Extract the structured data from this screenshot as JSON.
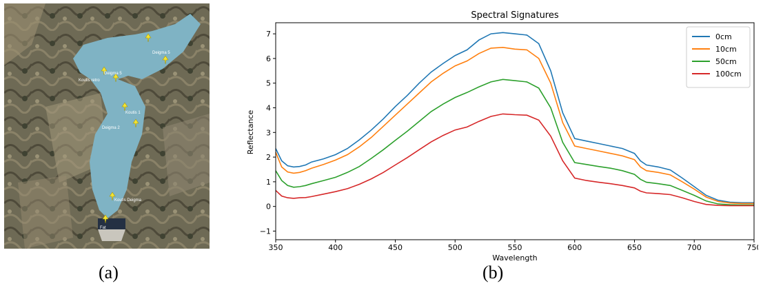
{
  "map_panel": {
    "labels": [
      {
        "name": "label-1",
        "text": ""
      },
      {
        "name": "label-2",
        "text": "Deigma 5"
      },
      {
        "name": "label-3",
        "text": "Koutis retro"
      },
      {
        "name": "label-4",
        "text": "Koutis 1"
      },
      {
        "name": "label-5",
        "text": "Deigma 2"
      },
      {
        "name": "label-6",
        "text": "Koutis Deigma"
      },
      {
        "name": "label-7",
        "text": "Fat"
      }
    ],
    "colors": {
      "water": "#7fb3c4",
      "pin": "#f5e531"
    }
  },
  "captions": {
    "a": "(a)",
    "b": "(b)"
  },
  "chart_data": {
    "type": "line",
    "title": "Spectral Signatures",
    "xlabel": "Wavelength",
    "ylabel": "Reflectance",
    "xlim": [
      350,
      750
    ],
    "ylim": [
      -1.35,
      7.45
    ],
    "xticks": [
      350,
      400,
      450,
      500,
      550,
      600,
      650,
      700,
      750
    ],
    "yticks": [
      -1,
      0,
      1,
      2,
      3,
      4,
      5,
      6,
      7
    ],
    "legend_position": "top-right",
    "grid": false,
    "x": [
      350,
      355,
      360,
      365,
      370,
      375,
      380,
      390,
      400,
      410,
      420,
      430,
      440,
      450,
      460,
      470,
      480,
      490,
      500,
      510,
      520,
      530,
      540,
      550,
      560,
      570,
      580,
      590,
      600,
      610,
      620,
      630,
      640,
      650,
      655,
      660,
      670,
      680,
      690,
      700,
      710,
      720,
      730,
      740,
      750
    ],
    "series": [
      {
        "name": "0cm",
        "color": "#1f77b4",
        "values": [
          2.35,
          1.85,
          1.65,
          1.6,
          1.62,
          1.68,
          1.8,
          1.93,
          2.1,
          2.35,
          2.7,
          3.1,
          3.55,
          4.05,
          4.5,
          5.0,
          5.45,
          5.8,
          6.12,
          6.35,
          6.75,
          7.0,
          7.05,
          7.0,
          6.95,
          6.6,
          5.5,
          3.8,
          2.75,
          2.65,
          2.55,
          2.45,
          2.35,
          2.15,
          1.85,
          1.68,
          1.6,
          1.48,
          1.15,
          0.8,
          0.45,
          0.25,
          0.17,
          0.15,
          0.15
        ]
      },
      {
        "name": "10cm",
        "color": "#ff7f0e",
        "values": [
          2.2,
          1.6,
          1.4,
          1.35,
          1.38,
          1.45,
          1.55,
          1.7,
          1.88,
          2.1,
          2.42,
          2.8,
          3.25,
          3.7,
          4.15,
          4.6,
          5.05,
          5.4,
          5.7,
          5.9,
          6.2,
          6.42,
          6.45,
          6.38,
          6.35,
          6.0,
          5.0,
          3.4,
          2.45,
          2.35,
          2.25,
          2.15,
          2.05,
          1.9,
          1.6,
          1.45,
          1.38,
          1.28,
          1.0,
          0.7,
          0.38,
          0.2,
          0.14,
          0.12,
          0.12
        ]
      },
      {
        "name": "50cm",
        "color": "#2ca02c",
        "values": [
          1.45,
          1.05,
          0.85,
          0.78,
          0.8,
          0.85,
          0.92,
          1.05,
          1.18,
          1.38,
          1.62,
          1.95,
          2.3,
          2.68,
          3.05,
          3.45,
          3.85,
          4.15,
          4.42,
          4.62,
          4.85,
          5.05,
          5.15,
          5.1,
          5.05,
          4.8,
          4.0,
          2.6,
          1.78,
          1.7,
          1.62,
          1.55,
          1.45,
          1.3,
          1.1,
          0.98,
          0.92,
          0.85,
          0.65,
          0.45,
          0.22,
          0.1,
          0.07,
          0.06,
          0.06
        ]
      },
      {
        "name": "100cm",
        "color": "#d62728",
        "values": [
          0.65,
          0.42,
          0.35,
          0.33,
          0.35,
          0.36,
          0.4,
          0.5,
          0.6,
          0.72,
          0.9,
          1.12,
          1.38,
          1.68,
          1.98,
          2.3,
          2.62,
          2.88,
          3.1,
          3.22,
          3.45,
          3.65,
          3.75,
          3.72,
          3.7,
          3.5,
          2.85,
          1.85,
          1.15,
          1.05,
          0.98,
          0.92,
          0.85,
          0.75,
          0.62,
          0.55,
          0.52,
          0.48,
          0.35,
          0.2,
          0.08,
          0.04,
          0.03,
          0.03,
          0.03
        ]
      }
    ]
  }
}
